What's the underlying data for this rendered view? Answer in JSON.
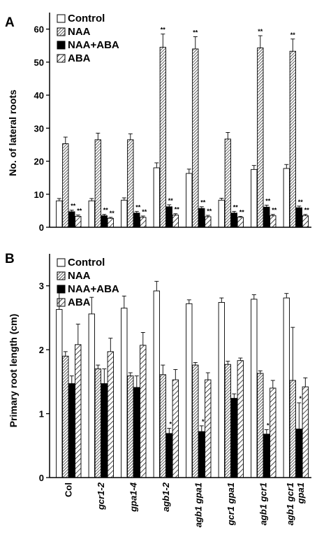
{
  "colors": {
    "ink": "#000000",
    "paper": "#ffffff",
    "hatch": "#444444"
  },
  "chart_data": [
    {
      "panel_label": "A",
      "type": "bar",
      "ylabel": "No. of lateral roots",
      "ylim": [
        0,
        60
      ],
      "yticks": [
        "0",
        "10",
        "20",
        "30",
        "40",
        "50",
        "60"
      ],
      "legend": [
        "Control",
        "NAA",
        "NAA+ABA",
        "ABA"
      ],
      "series": [
        {
          "name": "Control",
          "fill": "white",
          "values": [
            8,
            8,
            8.2,
            18,
            16.3,
            8.2,
            17.5,
            17.8
          ],
          "errors": [
            0.7,
            0.7,
            0.7,
            1.5,
            1.3,
            0.6,
            1.2,
            1.2
          ],
          "sig": [
            "",
            "",
            "",
            "",
            "",
            "",
            "",
            ""
          ]
        },
        {
          "name": "NAA",
          "fill": "hatch-dense",
          "values": [
            25.3,
            26.5,
            26.5,
            54.5,
            54,
            26.7,
            54.3,
            53.3
          ],
          "errors": [
            2,
            2,
            1.8,
            4,
            3.7,
            2,
            3.7,
            3.7
          ],
          "sig": [
            "",
            "",
            "",
            "**",
            "**",
            "",
            "**",
            "**"
          ]
        },
        {
          "name": "NAA+ABA",
          "fill": "black",
          "values": [
            4.7,
            3.5,
            4.3,
            6.2,
            5.7,
            4.3,
            6.1,
            5.9
          ],
          "errors": [
            0.5,
            0.4,
            0.5,
            0.6,
            0.5,
            0.5,
            0.6,
            0.5
          ],
          "sig": [
            "**",
            "**",
            "**",
            "**",
            "**",
            "**",
            "**",
            "**"
          ]
        },
        {
          "name": "ABA",
          "fill": "hatch-sparse",
          "values": [
            3.3,
            2.7,
            3,
            3.7,
            3.2,
            3,
            3.5,
            3.5
          ],
          "errors": [
            0.4,
            0.3,
            0.4,
            0.4,
            0.4,
            0.3,
            0.4,
            0.4
          ],
          "sig": [
            "**",
            "**",
            "**",
            "**",
            "**",
            "**",
            "**",
            "**"
          ]
        }
      ]
    },
    {
      "panel_label": "B",
      "type": "bar",
      "ylabel": "Primary root length (cm)",
      "ylim": [
        0,
        3.5
      ],
      "yticks": [
        "0",
        "1",
        "2",
        "3"
      ],
      "legend": [
        "Control",
        "NAA",
        "NAA+ABA",
        "ABA"
      ],
      "categories": [
        "Col",
        "gcr1-2",
        "gpa1-4",
        "agb1-2",
        "agb1 gpa1",
        "gcr1 gpa1",
        "agb1 gcr1",
        "agb1 gcr1 gpa1"
      ],
      "categories_display": [
        [
          "Col"
        ],
        [
          "gcr1-2"
        ],
        [
          "gpa1-4"
        ],
        [
          "agb1-2"
        ],
        [
          "agb1 gpa1"
        ],
        [
          "gcr1 gpa1"
        ],
        [
          "agb1 gcr1"
        ],
        [
          "agb1 gcr1",
          "gpa1"
        ]
      ],
      "series": [
        {
          "name": "Control",
          "fill": "white",
          "values": [
            2.63,
            2.56,
            2.65,
            2.92,
            2.72,
            2.74,
            2.79,
            2.81
          ],
          "errors": [
            0.28,
            0.26,
            0.19,
            0.15,
            0.06,
            0.07,
            0.07,
            0.07
          ],
          "sig": [
            "",
            "",
            "",
            "",
            "",
            "",
            "",
            ""
          ]
        },
        {
          "name": "NAA",
          "fill": "hatch-dense",
          "values": [
            1.9,
            1.7,
            1.59,
            1.61,
            1.76,
            1.77,
            1.63,
            1.52
          ],
          "errors": [
            0.07,
            0.06,
            0.05,
            0.15,
            0.04,
            0.05,
            0.04,
            0.83
          ],
          "sig": [
            "",
            "",
            "",
            "",
            "",
            "",
            "",
            ""
          ]
        },
        {
          "name": "NAA+ABA",
          "fill": "black",
          "values": [
            1.47,
            1.47,
            1.41,
            0.69,
            0.72,
            1.24,
            0.68,
            0.76
          ],
          "errors": [
            0.12,
            0.23,
            0.18,
            0.08,
            0.09,
            0.07,
            0.07,
            0.41
          ],
          "sig": [
            "",
            "",
            "",
            "*",
            "*",
            "",
            "*",
            "*"
          ]
        },
        {
          "name": "ABA",
          "fill": "hatch-sparse",
          "values": [
            2.08,
            1.97,
            2.07,
            1.53,
            1.53,
            1.83,
            1.4,
            1.42
          ],
          "errors": [
            0.32,
            0.21,
            0.2,
            0.16,
            0.11,
            0.04,
            0.12,
            0.14
          ],
          "sig": [
            "",
            "",
            "",
            "",
            "",
            "",
            "",
            ""
          ]
        }
      ]
    }
  ]
}
